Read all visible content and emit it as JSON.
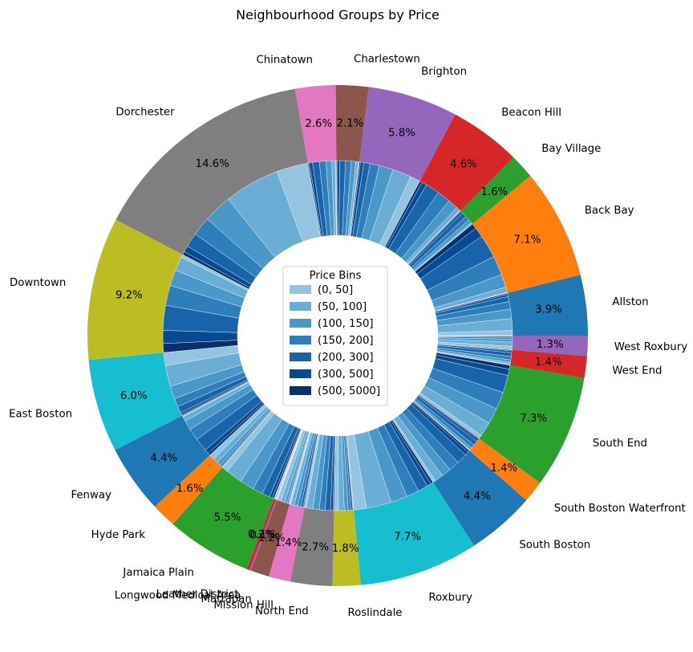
{
  "chart_data": {
    "type": "pie",
    "subtype": "nested-donut",
    "title": "Neighbourhood Groups by Price",
    "outer_ring": {
      "start_position": "right (3 o'clock), counter-clockwise",
      "categories": [
        "Allston",
        "Back Bay",
        "Bay Village",
        "Beacon Hill",
        "Brighton",
        "Charlestown",
        "Chinatown",
        "Dorchester",
        "Downtown",
        "East Boston",
        "Fenway",
        "Hyde Park",
        "Jamaica Plain",
        "Leather District",
        "Longwood Medical Area",
        "Mattapan",
        "Mission Hill",
        "North End",
        "Roslindale",
        "Roxbury",
        "South Boston",
        "South Boston Waterfront",
        "South End",
        "West End",
        "West Roxbury"
      ],
      "values": [
        3.9,
        7.1,
        1.6,
        4.6,
        5.8,
        2.1,
        2.6,
        14.6,
        9.2,
        6.0,
        4.4,
        1.6,
        5.5,
        0.2,
        0.1,
        1.2,
        1.4,
        2.7,
        1.8,
        7.7,
        4.4,
        1.4,
        7.3,
        1.4,
        1.3
      ],
      "pct_labels": [
        "3.9%",
        "7.1%",
        "1.6%",
        "4.6%",
        "5.8%",
        "2.1%",
        "2.6%",
        "14.6%",
        "9.2%",
        "6.0%",
        "4.4%",
        "1.6%",
        "5.5%",
        "0.2%",
        "0.1%",
        "1.2%",
        "1.4%",
        "2.7%",
        "1.8%",
        "7.7%",
        "4.4%",
        "1.4%",
        "7.3%",
        "1.4%",
        "1.3%"
      ],
      "colors": [
        "#1f77b4",
        "#ff7f0e",
        "#2ca02c",
        "#d62728",
        "#9467bd",
        "#8c564b",
        "#e377c2",
        "#7f7f7f",
        "#bcbd22",
        "#17becf",
        "#1f77b4",
        "#ff7f0e",
        "#2ca02c",
        "#d62728",
        "#9467bd",
        "#8c564b",
        "#e377c2",
        "#7f7f7f",
        "#bcbd22",
        "#17becf",
        "#1f77b4",
        "#ff7f0e",
        "#2ca02c",
        "#d62728",
        "#9467bd"
      ]
    },
    "inner_ring": {
      "description": "Each neighbourhood split into price bins (Blues colormap)",
      "bin_colors": [
        "#94c4df",
        "#6aaed6",
        "#4a98c9",
        "#2e7ebc",
        "#1764ab",
        "#084a91",
        "#08306b"
      ],
      "bin_shares": [
        [
          0.12,
          0.28,
          0.22,
          0.18,
          0.12,
          0.05,
          0.03
        ],
        [
          0.01,
          0.07,
          0.17,
          0.25,
          0.3,
          0.13,
          0.07
        ],
        [
          0.02,
          0.08,
          0.2,
          0.26,
          0.28,
          0.11,
          0.05
        ],
        [
          0.02,
          0.08,
          0.2,
          0.27,
          0.28,
          0.1,
          0.05
        ],
        [
          0.16,
          0.3,
          0.22,
          0.15,
          0.1,
          0.05,
          0.02
        ],
        [
          0.03,
          0.12,
          0.2,
          0.25,
          0.25,
          0.1,
          0.05
        ],
        [
          0.04,
          0.12,
          0.2,
          0.24,
          0.24,
          0.11,
          0.05
        ],
        [
          0.2,
          0.35,
          0.18,
          0.12,
          0.09,
          0.04,
          0.02
        ],
        [
          0.03,
          0.14,
          0.16,
          0.2,
          0.25,
          0.13,
          0.09
        ],
        [
          0.2,
          0.32,
          0.2,
          0.13,
          0.1,
          0.03,
          0.02
        ],
        [
          0.03,
          0.1,
          0.2,
          0.25,
          0.28,
          0.09,
          0.05
        ],
        [
          0.3,
          0.3,
          0.2,
          0.1,
          0.06,
          0.02,
          0.02
        ],
        [
          0.1,
          0.28,
          0.24,
          0.17,
          0.13,
          0.05,
          0.03
        ],
        [
          0.0,
          0.0,
          0.2,
          0.3,
          0.3,
          0.2,
          0.0
        ],
        [
          0.0,
          0.3,
          0.4,
          0.3,
          0.0,
          0.0,
          0.0
        ],
        [
          0.3,
          0.3,
          0.2,
          0.1,
          0.05,
          0.03,
          0.02
        ],
        [
          0.08,
          0.22,
          0.25,
          0.2,
          0.15,
          0.06,
          0.04
        ],
        [
          0.06,
          0.22,
          0.22,
          0.2,
          0.18,
          0.08,
          0.04
        ],
        [
          0.22,
          0.3,
          0.2,
          0.13,
          0.1,
          0.03,
          0.02
        ],
        [
          0.15,
          0.3,
          0.2,
          0.15,
          0.12,
          0.05,
          0.03
        ],
        [
          0.06,
          0.18,
          0.2,
          0.22,
          0.22,
          0.08,
          0.04
        ],
        [
          0.02,
          0.06,
          0.15,
          0.25,
          0.3,
          0.14,
          0.08
        ],
        [
          0.05,
          0.18,
          0.2,
          0.22,
          0.22,
          0.08,
          0.05
        ],
        [
          0.05,
          0.12,
          0.18,
          0.22,
          0.25,
          0.12,
          0.06
        ],
        [
          0.25,
          0.3,
          0.2,
          0.12,
          0.08,
          0.03,
          0.02
        ]
      ]
    },
    "legend": {
      "title": "Price Bins",
      "placement": "center",
      "entries": [
        "(0, 50]",
        "(50, 100]",
        "(100, 150]",
        "(150, 200]",
        "(200, 300]",
        "(300, 500]",
        "(500, 5000]"
      ]
    }
  }
}
